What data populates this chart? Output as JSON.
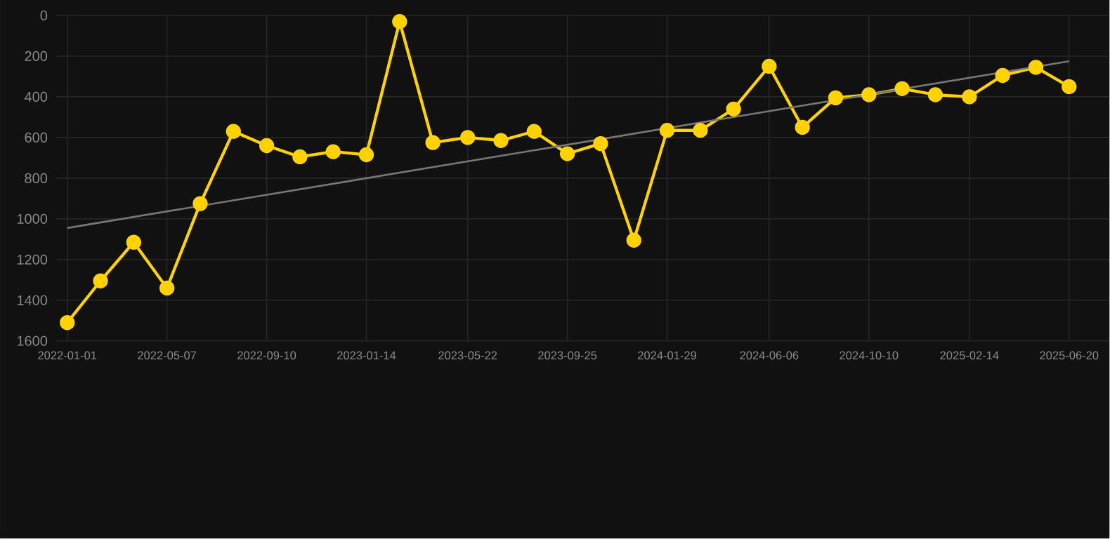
{
  "chart_data": {
    "type": "line",
    "x": [
      "2022-01-01",
      "2022-02-12",
      "2022-03-26",
      "2022-05-07",
      "2022-06-18",
      "2022-07-30",
      "2022-09-10",
      "2022-10-22",
      "2022-12-03",
      "2023-01-14",
      "2023-02-25",
      "2023-04-08",
      "2023-05-22",
      "2023-07-03",
      "2023-08-14",
      "2023-09-25",
      "2023-11-06",
      "2023-12-18",
      "2024-01-29",
      "2024-03-11",
      "2024-04-22",
      "2024-06-06",
      "2024-07-18",
      "2024-08-29",
      "2024-10-10",
      "2024-11-21",
      "2025-01-02",
      "2025-02-14",
      "2025-03-28",
      "2025-05-09",
      "2025-06-20"
    ],
    "series": [
      {
        "color": "#ffd200",
        "marker": "circle",
        "values": [
          1510,
          1305,
          1115,
          1340,
          925,
          570,
          640,
          695,
          670,
          685,
          30,
          625,
          600,
          615,
          570,
          680,
          630,
          1105,
          565,
          565,
          460,
          250,
          550,
          405,
          390,
          360,
          390,
          400,
          295,
          255,
          350
        ]
      },
      {
        "type": "line",
        "color": "#777777",
        "marker": "none",
        "x": [
          "2022-01-01",
          "2025-06-20"
        ],
        "values": [
          1045,
          225
        ]
      }
    ],
    "xlim": [
      "2021-12-18",
      "2025-08-10"
    ],
    "xticks": [
      "2022-01-01",
      "2022-05-07",
      "2022-09-10",
      "2023-01-14",
      "2023-05-22",
      "2023-09-25",
      "2024-01-29",
      "2024-06-06",
      "2024-10-10",
      "2025-02-14",
      "2025-06-20"
    ],
    "ylim": [
      1600,
      0
    ],
    "yticks": [
      0,
      200,
      400,
      600,
      800,
      1000,
      1200,
      1400,
      1600
    ],
    "grid": true
  }
}
